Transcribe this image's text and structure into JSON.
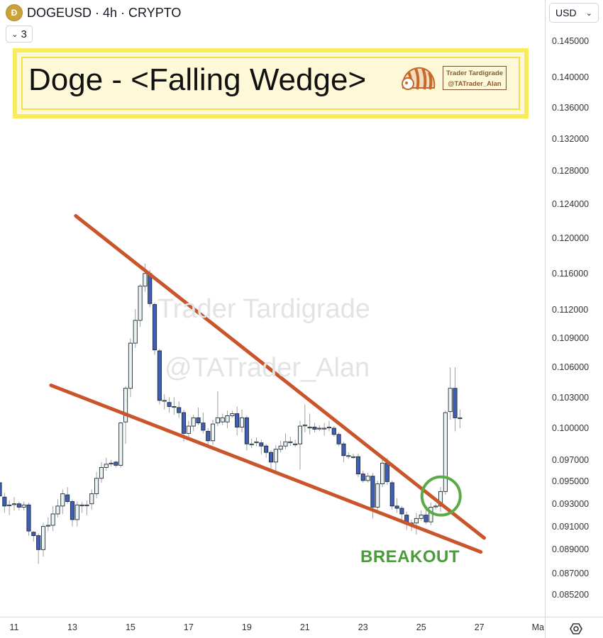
{
  "header": {
    "symbol_line": "DOGEUSD · 4h · CRYPTO",
    "coin_icon": "doge-coin-icon",
    "layers_count": "3"
  },
  "currency": {
    "selected": "USD"
  },
  "title_box": {
    "title": "Doge - <Falling Wedge>",
    "brand_line1": "Trader Tardigrade",
    "brand_line2": "@TATrader_Alan"
  },
  "watermark": {
    "line1": "Trader Tardigrade",
    "line2": "@TATrader_Alan"
  },
  "annotation": {
    "label": "BREAKOUT",
    "color": "#4b9a3c"
  },
  "colors": {
    "bull_fill": "#eaf5f1",
    "bear_fill": "#3f5fb5",
    "outline": "#1f2a3a",
    "wick": "#a0a0a0",
    "trendline": "#c9562b",
    "circle": "#5aaa48",
    "title_border": "#f7ec5a"
  },
  "chart_data": {
    "type": "candlestick",
    "timeframe": "4h",
    "y_scale": "log",
    "grid": false,
    "yticks": [
      "0.145000",
      "0.140000",
      "0.136000",
      "0.132000",
      "0.128000",
      "0.124000",
      "0.120000",
      "0.116000",
      "0.112000",
      "0.109000",
      "0.106000",
      "0.103000",
      "0.100000",
      "0.097000",
      "0.095000",
      "0.093000",
      "0.091000",
      "0.089000",
      "0.087000",
      "0.085200"
    ],
    "xticks": [
      {
        "label": "11",
        "index": 3
      },
      {
        "label": "13",
        "index": 15
      },
      {
        "label": "15",
        "index": 27
      },
      {
        "label": "17",
        "index": 39
      },
      {
        "label": "19",
        "index": 51
      },
      {
        "label": "21",
        "index": 63
      },
      {
        "label": "23",
        "index": 75
      },
      {
        "label": "25",
        "index": 87
      },
      {
        "label": "27",
        "index": 99
      },
      {
        "label": "Ma",
        "index": 111
      }
    ],
    "candles_ohlc": [
      [
        0.0949,
        0.0955,
        0.0932,
        0.0937
      ],
      [
        0.0936,
        0.094,
        0.0922,
        0.0928
      ],
      [
        0.0929,
        0.0933,
        0.092,
        0.0929
      ],
      [
        0.093,
        0.0936,
        0.0924,
        0.093
      ],
      [
        0.093,
        0.0932,
        0.0924,
        0.0927
      ],
      [
        0.0927,
        0.0932,
        0.0924,
        0.0929
      ],
      [
        0.0929,
        0.0931,
        0.0902,
        0.0906
      ],
      [
        0.0905,
        0.0906,
        0.0897,
        0.0902
      ],
      [
        0.0902,
        0.0904,
        0.0878,
        0.089
      ],
      [
        0.089,
        0.0913,
        0.0884,
        0.091
      ],
      [
        0.0911,
        0.0918,
        0.0906,
        0.0911
      ],
      [
        0.0911,
        0.0928,
        0.0906,
        0.0921
      ],
      [
        0.0921,
        0.0934,
        0.0918,
        0.0928
      ],
      [
        0.0928,
        0.0943,
        0.0921,
        0.0939
      ],
      [
        0.0938,
        0.0945,
        0.093,
        0.0932
      ],
      [
        0.0932,
        0.0934,
        0.091,
        0.0916
      ],
      [
        0.0916,
        0.0932,
        0.091,
        0.0929
      ],
      [
        0.0929,
        0.0932,
        0.0922,
        0.0929
      ],
      [
        0.0929,
        0.0933,
        0.092,
        0.0929
      ],
      [
        0.093,
        0.0943,
        0.0925,
        0.0939
      ],
      [
        0.0939,
        0.0959,
        0.0935,
        0.0953
      ],
      [
        0.0953,
        0.0968,
        0.0949,
        0.0963
      ],
      [
        0.0963,
        0.0972,
        0.096,
        0.0966
      ],
      [
        0.0967,
        0.097,
        0.0964,
        0.0967
      ],
      [
        0.0968,
        0.0969,
        0.0963,
        0.0965
      ],
      [
        0.0965,
        0.1006,
        0.0963,
        0.1005
      ],
      [
        0.1006,
        0.1041,
        0.0985,
        0.1039
      ],
      [
        0.1039,
        0.109,
        0.103,
        0.1085
      ],
      [
        0.1085,
        0.1121,
        0.108,
        0.1109
      ],
      [
        0.1109,
        0.1148,
        0.1102,
        0.1146
      ],
      [
        0.1146,
        0.1171,
        0.114,
        0.116
      ],
      [
        0.116,
        0.1164,
        0.1123,
        0.1127
      ],
      [
        0.1126,
        0.1128,
        0.1073,
        0.1078
      ],
      [
        0.1077,
        0.1079,
        0.1023,
        0.1027
      ],
      [
        0.1027,
        0.1033,
        0.1018,
        0.1027
      ],
      [
        0.1025,
        0.103,
        0.1015,
        0.1021
      ],
      [
        0.1021,
        0.103,
        0.1013,
        0.1021
      ],
      [
        0.102,
        0.1026,
        0.101,
        0.1015
      ],
      [
        0.1015,
        0.1018,
        0.0987,
        0.0995
      ],
      [
        0.0995,
        0.1007,
        0.099,
        0.1002
      ],
      [
        0.1002,
        0.1013,
        0.0997,
        0.101
      ],
      [
        0.101,
        0.102,
        0.1003,
        0.1005
      ],
      [
        0.1005,
        0.1015,
        0.0995,
        0.0998
      ],
      [
        0.0997,
        0.1,
        0.0983,
        0.0988
      ],
      [
        0.0988,
        0.1008,
        0.0984,
        0.1004
      ],
      [
        0.1005,
        0.1036,
        0.1002,
        0.101
      ],
      [
        0.1006,
        0.1014,
        0.1003,
        0.101
      ],
      [
        0.1006,
        0.1017,
        0.1,
        0.1012
      ],
      [
        0.1012,
        0.1017,
        0.101,
        0.1014
      ],
      [
        0.1014,
        0.1021,
        0.0993,
        0.1001
      ],
      [
        0.1001,
        0.1018,
        0.0996,
        0.101
      ],
      [
        0.101,
        0.1012,
        0.0979,
        0.0985
      ],
      [
        0.0985,
        0.099,
        0.0981,
        0.0985
      ],
      [
        0.0987,
        0.0991,
        0.0983,
        0.0987
      ],
      [
        0.0986,
        0.0989,
        0.0975,
        0.0983
      ],
      [
        0.0983,
        0.0985,
        0.0972,
        0.0977
      ],
      [
        0.0977,
        0.0979,
        0.0962,
        0.0968
      ],
      [
        0.0968,
        0.0984,
        0.0959,
        0.098
      ],
      [
        0.098,
        0.0988,
        0.0977,
        0.0983
      ],
      [
        0.0983,
        0.0995,
        0.098,
        0.0987
      ],
      [
        0.0987,
        0.0992,
        0.0983,
        0.0987
      ],
      [
        0.0985,
        0.0989,
        0.0982,
        0.0985
      ],
      [
        0.0985,
        0.1007,
        0.0961,
        0.1002
      ],
      [
        0.1003,
        0.1023,
        0.0996,
        0.1003
      ],
      [
        0.1001,
        0.1014,
        0.0994,
        0.1001
      ],
      [
        0.1001,
        0.1005,
        0.0996,
        0.0999
      ],
      [
        0.1,
        0.1003,
        0.0997,
        0.1
      ],
      [
        0.1,
        0.1005,
        0.0993,
        0.1
      ],
      [
        0.1001,
        0.1007,
        0.0997,
        0.1001
      ],
      [
        0.1,
        0.1002,
        0.0992,
        0.0994
      ],
      [
        0.0994,
        0.0996,
        0.0983,
        0.0985
      ],
      [
        0.0985,
        0.0987,
        0.0968,
        0.0974
      ],
      [
        0.0974,
        0.0977,
        0.0971,
        0.0974
      ],
      [
        0.0973,
        0.0976,
        0.0971,
        0.0973
      ],
      [
        0.0973,
        0.0976,
        0.0954,
        0.0957
      ],
      [
        0.0957,
        0.096,
        0.0949,
        0.0951
      ],
      [
        0.0951,
        0.0958,
        0.0949,
        0.0955
      ],
      [
        0.0955,
        0.0958,
        0.0917,
        0.0927
      ],
      [
        0.0927,
        0.0951,
        0.0922,
        0.0948
      ],
      [
        0.0948,
        0.0971,
        0.0945,
        0.0967
      ],
      [
        0.0967,
        0.0972,
        0.0947,
        0.095
      ],
      [
        0.0949,
        0.0951,
        0.0925,
        0.0928
      ],
      [
        0.0928,
        0.0935,
        0.0922,
        0.0926
      ],
      [
        0.0926,
        0.0928,
        0.0916,
        0.0921
      ],
      [
        0.092,
        0.0923,
        0.0907,
        0.0912
      ],
      [
        0.0913,
        0.0916,
        0.0906,
        0.0913
      ],
      [
        0.0913,
        0.0922,
        0.0903,
        0.0917
      ],
      [
        0.0917,
        0.0924,
        0.0915,
        0.092
      ],
      [
        0.092,
        0.0928,
        0.0912,
        0.0914
      ],
      [
        0.0914,
        0.0931,
        0.0911,
        0.0927
      ],
      [
        0.0928,
        0.093,
        0.0925,
        0.0928
      ],
      [
        0.0928,
        0.0945,
        0.0923,
        0.0941
      ],
      [
        0.0941,
        0.1017,
        0.0938,
        0.1015
      ],
      [
        0.1016,
        0.106,
        0.1008,
        0.1039
      ],
      [
        0.1039,
        0.106,
        0.0997,
        0.101
      ],
      [
        0.101,
        0.1018,
        0.1,
        0.101
      ]
    ],
    "trendlines": [
      {
        "role": "upper",
        "from": {
          "index": 15.7,
          "price": 0.1226
        },
        "to": {
          "index": 100,
          "price": 0.09
        }
      },
      {
        "role": "lower",
        "from": {
          "index": 10.6,
          "price": 0.1042
        },
        "to": {
          "index": 99.3,
          "price": 0.0888
        }
      }
    ],
    "highlight_circle": {
      "index": 91.1,
      "price": 0.0937
    }
  }
}
